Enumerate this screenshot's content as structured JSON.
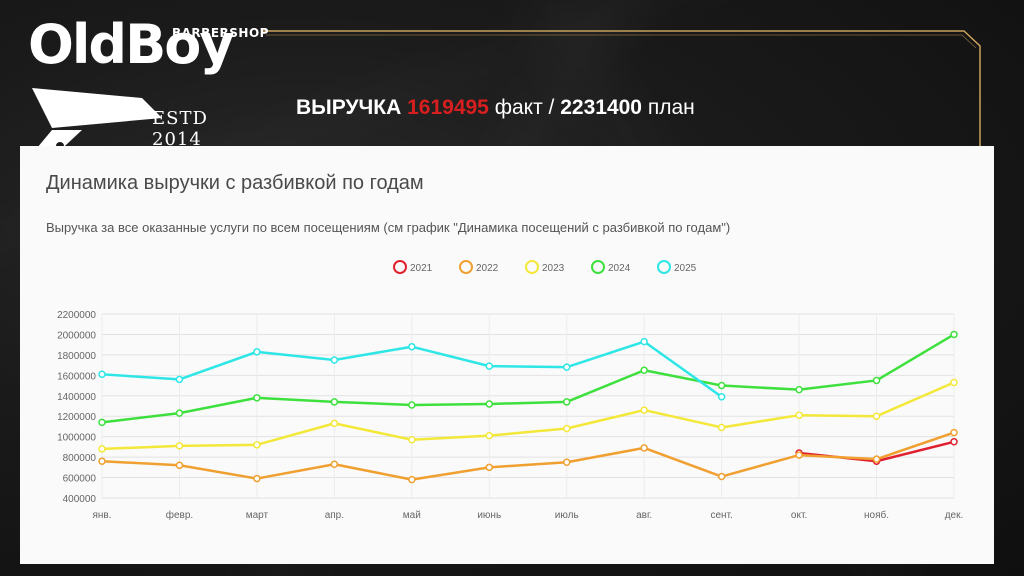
{
  "logo": {
    "brand": "OldBoy",
    "shop": "BARBERSHOP",
    "established": "ESTD 2014"
  },
  "headline": {
    "label": "ВЫРУЧКА",
    "fact_value": "1619495",
    "fact_label": "факт /",
    "plan_value": "2231400",
    "plan_label": "план"
  },
  "colors": {
    "frame": "#c9a15a",
    "fact_value": "#d81e1e"
  },
  "chart_data": {
    "type": "line",
    "title": "Динамика выручки с разбивкой по годам",
    "subtitle": "Выручка за все оказанные услуги по всем посещениям (см график \"Динамика посещений с разбивкой по годам\")",
    "categories": [
      "янв.",
      "февр.",
      "март",
      "апр.",
      "май",
      "июнь",
      "июль",
      "авг.",
      "сент.",
      "окт.",
      "нояб.",
      "дек."
    ],
    "ylim": [
      400000,
      2200000
    ],
    "yticks": [
      400000,
      600000,
      800000,
      1000000,
      1200000,
      1400000,
      1600000,
      1800000,
      2000000,
      2200000
    ],
    "grid": true,
    "legend_position": "top",
    "series": [
      {
        "name": "2021",
        "color": "#e0202e",
        "values": [
          null,
          null,
          null,
          null,
          null,
          null,
          null,
          null,
          null,
          840000,
          760000,
          950000
        ]
      },
      {
        "name": "2022",
        "color": "#f0a030",
        "values": [
          760000,
          720000,
          590000,
          730000,
          580000,
          700000,
          750000,
          890000,
          610000,
          820000,
          780000,
          1040000
        ]
      },
      {
        "name": "2023",
        "color": "#f3e83a",
        "values": [
          880000,
          910000,
          920000,
          1130000,
          970000,
          1010000,
          1080000,
          1260000,
          1090000,
          1210000,
          1200000,
          1530000
        ]
      },
      {
        "name": "2024",
        "color": "#3ee03e",
        "values": [
          1140000,
          1230000,
          1380000,
          1340000,
          1310000,
          1320000,
          1340000,
          1650000,
          1500000,
          1460000,
          1550000,
          2000000
        ]
      },
      {
        "name": "2025",
        "color": "#2ee6e6",
        "values": [
          1610000,
          1560000,
          1830000,
          1750000,
          1880000,
          1690000,
          1680000,
          1930000,
          1390000,
          null,
          null,
          null
        ]
      }
    ]
  }
}
